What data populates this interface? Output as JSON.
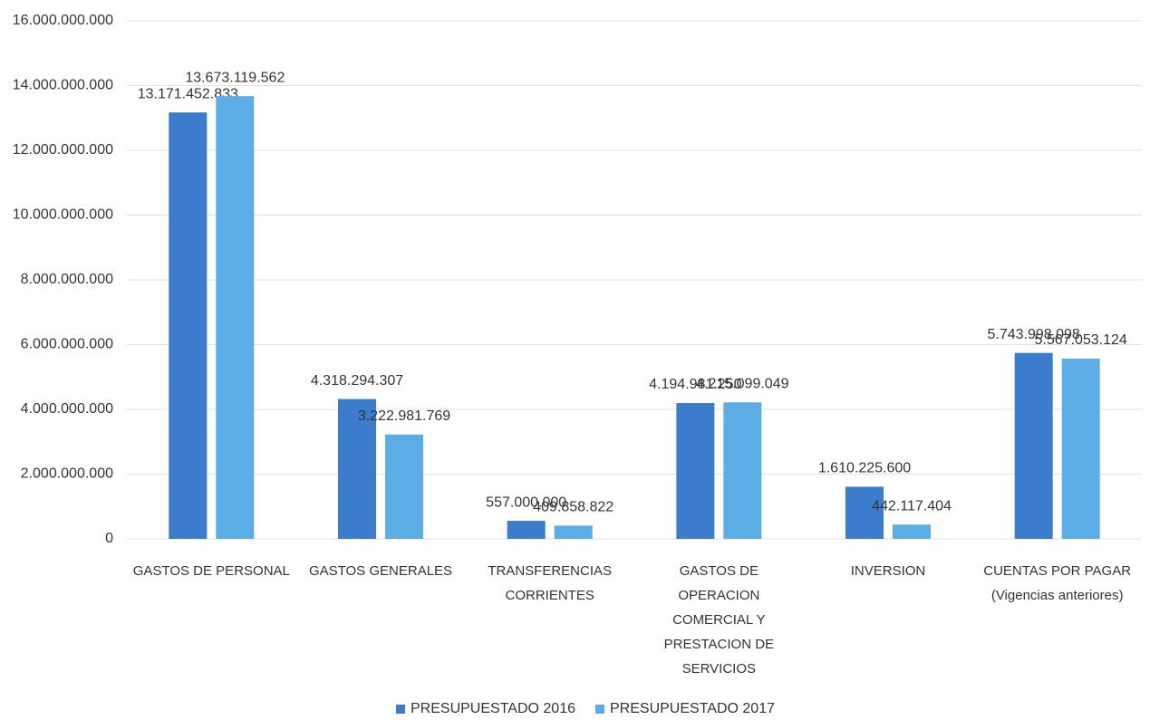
{
  "chart_data": {
    "type": "bar",
    "categories": [
      "GASTOS DE PERSONAL",
      "GASTOS GENERALES",
      "TRANSFERENCIAS CORRIENTES",
      "GASTOS DE OPERACION COMERCIAL Y PRESTACION DE SERVICIOS",
      "INVERSION",
      "CUENTAS POR PAGAR (Vigencias anteriores)"
    ],
    "series": [
      {
        "name": "PRESUPUESTADO 2016",
        "color": "#3c7ccc",
        "values": [
          13171452833,
          4318294307,
          557000000,
          4194981250,
          1610225600,
          5743998098
        ],
        "value_labels": [
          "13.171.452.833",
          "4.318.294.307",
          "557.000.000",
          "4.194.981.250",
          "1.610.225.600",
          "5.743.998.098"
        ]
      },
      {
        "name": "PRESUPUESTADO 2017",
        "color": "#5cade6",
        "values": [
          13673119562,
          3222981769,
          409858822,
          4215099049,
          442117404,
          5567053124
        ],
        "value_labels": [
          "13.673.119.562",
          "3.222.981.769",
          "409.858.822",
          "4.215.099.049",
          "442.117.404",
          "5.567.053.124"
        ]
      }
    ],
    "ylim": [
      0,
      16000000000
    ],
    "yticks": [
      0,
      {
        "value": 2000000000,
        "label": "2.000.000.000"
      },
      {
        "value": 4000000000,
        "label": "4.000.000.000"
      },
      {
        "value": 6000000000,
        "label": "6.000.000.000"
      },
      {
        "value": 8000000000,
        "label": "8.000.000.000"
      },
      {
        "value": 10000000000,
        "label": "10.000.000.000"
      },
      {
        "value": 12000000000,
        "label": "12.000.000.000"
      },
      {
        "value": 14000000000,
        "label": "14.000.000.000"
      },
      {
        "value": 16000000000,
        "label": "16.000.000.000"
      }
    ],
    "grid": true,
    "legend": "bottom"
  }
}
